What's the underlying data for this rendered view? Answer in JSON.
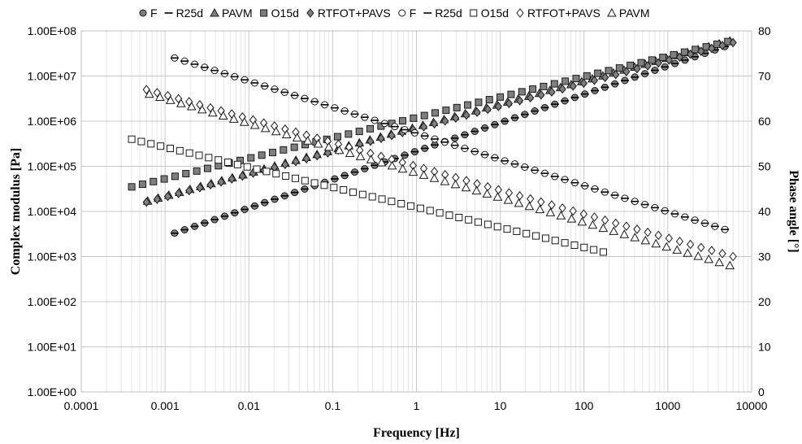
{
  "chart_data": {
    "type": "scatter",
    "title": "",
    "xlabel": "Frequency [Hz]",
    "ylabel": "Complex modulus [Pa]",
    "y2label": "Phase angle [°]",
    "xscale": "log",
    "yscale": "log",
    "xlim": [
      0.0001,
      10000
    ],
    "ylim": [
      1,
      100000000
    ],
    "y2lim": [
      0,
      80
    ],
    "grid": true,
    "legend_position": "top",
    "x_ticks": [
      "0.0001",
      "0.001",
      "0.01",
      "0.1",
      "1",
      "10",
      "100",
      "1000",
      "10000"
    ],
    "y_ticks": [
      "1.00E+00",
      "1.00E+01",
      "1.00E+02",
      "1.00E+03",
      "1.00E+04",
      "1.00E+05",
      "1.00E+06",
      "1.00E+07",
      "1.00E+08"
    ],
    "y2_ticks": [
      "0",
      "10",
      "20",
      "30",
      "40",
      "50",
      "60",
      "70",
      "80"
    ],
    "series": [
      {
        "name": "F",
        "axis": "left",
        "marker": "circle",
        "fill": "#7f7f7f",
        "stroke": "#1a1a1a",
        "x_start": 0.0013,
        "x_end": 4800,
        "y_start": 3300,
        "y_end": 45000000,
        "points": 56
      },
      {
        "name": "R25d",
        "axis": "left",
        "marker": "dash",
        "fill": "#000000",
        "stroke": "#000000",
        "x_start": 0.0013,
        "x_end": 4800,
        "y_start": 3300,
        "y_end": 45000000,
        "points": 56
      },
      {
        "name": "PAVM",
        "axis": "left",
        "marker": "triangle",
        "fill": "#7f7f7f",
        "stroke": "#1a1a1a",
        "x_start": 0.00062,
        "x_end": 5500,
        "y_start": 17000,
        "y_end": 60000000,
        "points": 56
      },
      {
        "name": "O15d",
        "axis": "left",
        "marker": "square",
        "fill": "#7f7f7f",
        "stroke": "#1a1a1a",
        "x_start": 0.0004,
        "x_end": 5200,
        "y_start": 35000,
        "y_end": 58000000,
        "points": 56
      },
      {
        "name": "RTFOT+PAVS",
        "axis": "left",
        "marker": "diamond",
        "fill": "#7f7f7f",
        "stroke": "#1a1a1a",
        "x_start": 0.0006,
        "x_end": 6000,
        "y_start": 16000,
        "y_end": 55000000,
        "points": 56
      },
      {
        "name": "F",
        "axis": "right",
        "marker": "circle",
        "fill": "#ffffff",
        "stroke": "#1a1a1a",
        "x_start": 0.0013,
        "x_end": 4800,
        "y_start": 74,
        "y_end": 36,
        "points": 56
      },
      {
        "name": "R25d",
        "axis": "right",
        "marker": "dash",
        "fill": "#000000",
        "stroke": "#000000",
        "x_start": 0.0013,
        "x_end": 4800,
        "y_start": 74,
        "y_end": 36,
        "points": 56
      },
      {
        "name": "O15d",
        "axis": "right",
        "marker": "square",
        "fill": "#ffffff",
        "stroke": "#1a1a1a",
        "x_start": 0.0004,
        "x_end": 170,
        "y_start": 56,
        "y_end": 31,
        "points": 50
      },
      {
        "name": "RTFOT+PAVS",
        "axis": "right",
        "marker": "diamond",
        "fill": "#ffffff",
        "stroke": "#1a1a1a",
        "x_start": 0.0006,
        "x_end": 6000,
        "y_start": 67,
        "y_end": 30,
        "points": 56
      },
      {
        "name": "PAVM",
        "axis": "right",
        "marker": "triangle",
        "fill": "#ffffff",
        "stroke": "#1a1a1a",
        "x_start": 0.00065,
        "x_end": 5500,
        "y_start": 66,
        "y_end": 28,
        "points": 56
      }
    ]
  }
}
